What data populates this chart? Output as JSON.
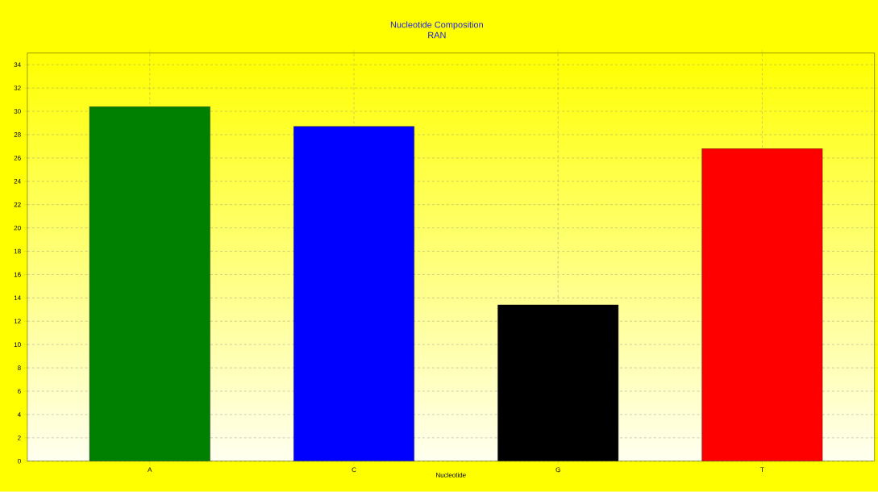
{
  "chart_data": {
    "type": "bar",
    "title": "Nucleotide Composition",
    "subtitle": "RAN",
    "xlabel": "Nucleotide",
    "categories": [
      "A",
      "C",
      "G",
      "T"
    ],
    "values": [
      30.4,
      28.7,
      13.4,
      26.8
    ],
    "colors": [
      "#008000",
      "#0000ff",
      "#000000",
      "#ff0000"
    ],
    "ylim": [
      0,
      35
    ],
    "yticks": [
      0,
      2,
      4,
      6,
      8,
      10,
      12,
      14,
      16,
      18,
      20,
      22,
      24,
      26,
      28,
      30,
      32,
      34
    ],
    "grid": true
  }
}
